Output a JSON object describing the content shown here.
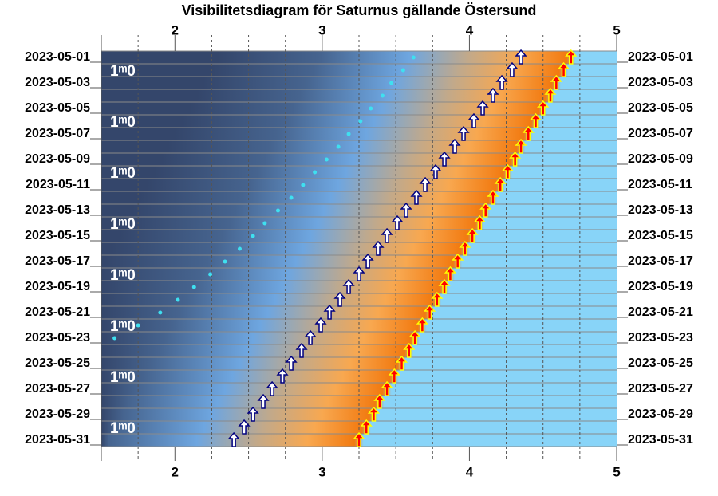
{
  "chart_data": {
    "type": "visibility",
    "title": "Visibilitetsdiagram för Saturnus gällande Östersund",
    "categories": [
      "2023-05-01",
      null,
      "2023-05-03",
      null,
      "2023-05-05",
      null,
      "2023-05-07",
      null,
      "2023-05-09",
      null,
      "2023-05-11",
      null,
      "2023-05-13",
      null,
      "2023-05-15",
      null,
      "2023-05-17",
      null,
      "2023-05-19",
      null,
      "2023-05-21",
      null,
      "2023-05-23",
      null,
      "2023-05-25",
      null,
      "2023-05-27",
      null,
      "2023-05-29",
      null,
      "2023-05-31"
    ],
    "xlim": [
      1.5,
      5
    ],
    "xticks": [
      2,
      3,
      4,
      5
    ],
    "xminor_ticks": [
      1.75,
      2.25,
      2.5,
      2.75,
      3.25,
      3.5,
      3.75,
      4.25,
      4.5,
      4.75
    ],
    "series": [
      {
        "marker": "dot",
        "color": "#3fe0f0",
        "values": [
          3.62,
          3.55,
          3.47,
          3.41,
          3.33,
          3.26,
          3.18,
          3.11,
          3.03,
          2.95,
          2.87,
          2.79,
          2.7,
          2.61,
          2.53,
          2.44,
          2.34,
          2.24,
          2.13,
          2.02,
          1.9,
          1.75,
          1.59,
          null,
          null,
          null,
          null,
          null,
          null,
          null,
          null
        ]
      },
      {
        "marker": "arrow",
        "color": "#ffffff",
        "edge_color": "#000080",
        "values": [
          4.35,
          4.29,
          4.22,
          4.16,
          4.09,
          4.03,
          3.96,
          3.9,
          3.83,
          3.77,
          3.7,
          3.64,
          3.57,
          3.51,
          3.44,
          3.38,
          3.31,
          3.25,
          3.18,
          3.12,
          3.05,
          2.99,
          2.92,
          2.86,
          2.79,
          2.73,
          2.66,
          2.6,
          2.53,
          2.47,
          2.4
        ]
      },
      {
        "marker": "arrow",
        "color": "#ff0000",
        "edge_color": "#ffff00",
        "sky": true,
        "values": [
          4.69,
          4.64,
          4.59,
          4.55,
          4.5,
          4.45,
          4.4,
          4.35,
          4.31,
          4.26,
          4.21,
          4.16,
          4.11,
          4.07,
          4.02,
          3.97,
          3.92,
          3.87,
          3.83,
          3.78,
          3.73,
          3.68,
          3.63,
          3.59,
          3.54,
          3.49,
          3.44,
          3.39,
          3.35,
          3.3,
          3.25
        ]
      }
    ],
    "magnitude": {
      "values": [
        null,
        1.0,
        null,
        null,
        null,
        1.0,
        null,
        null,
        null,
        1.0,
        null,
        null,
        null,
        1.0,
        null,
        null,
        null,
        1.0,
        null,
        null,
        null,
        1.0,
        null,
        null,
        null,
        1.0,
        null,
        null,
        null,
        1.0,
        null
      ],
      "value_labels": [
        null,
        "1ᵐ0",
        null,
        null,
        null,
        "1ᵐ0",
        null,
        null,
        null,
        "1ᵐ0",
        null,
        null,
        null,
        "1ᵐ0",
        null,
        null,
        null,
        "1ᵐ0",
        null,
        null,
        null,
        "1ᵐ0",
        null,
        null,
        null,
        "1ᵐ0",
        null,
        null,
        null,
        "1ᵐ0",
        null
      ]
    }
  }
}
